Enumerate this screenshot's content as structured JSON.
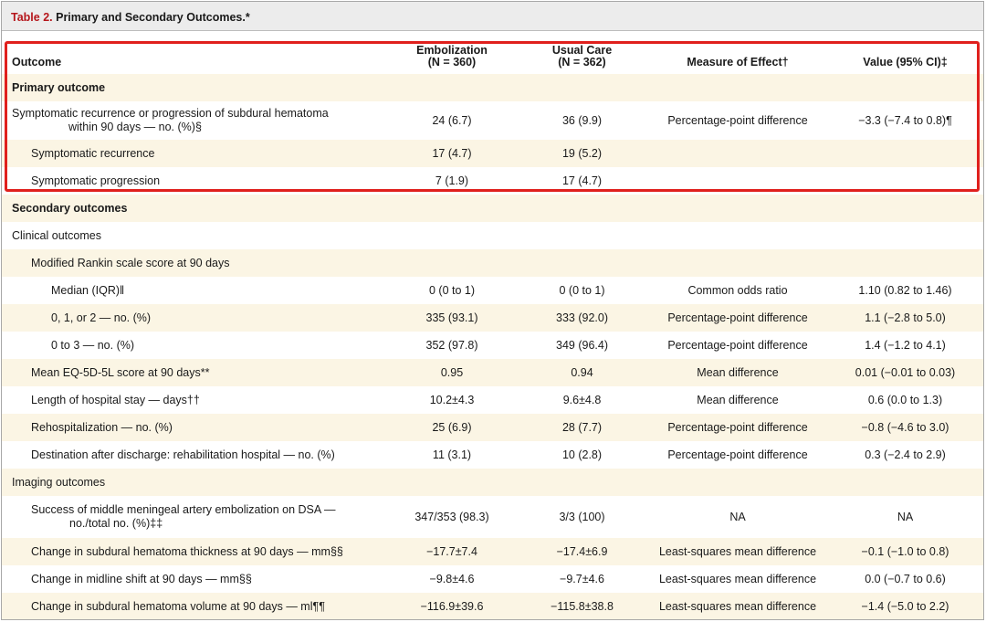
{
  "caption": {
    "table_number": "Table 2.",
    "title": "Primary and Secondary Outcomes.*"
  },
  "header": {
    "outcome": "Outcome",
    "embolization_name": "Embolization",
    "embolization_n": "(N = 360)",
    "usual_care_name": "Usual Care",
    "usual_care_n": "(N = 362)",
    "measure": "Measure of Effect†",
    "value": "Value (95% CI)‡"
  },
  "sections": {
    "primary": "Primary outcome",
    "secondary": "Secondary outcomes",
    "clinical": "Clinical outcomes",
    "imaging": "Imaging outcomes"
  },
  "rows": [
    {
      "label": "Symptomatic recurrence or progression of subdural hematoma",
      "label_cont": "within 90 days — no. (%)§",
      "emb": "24 (6.7)",
      "uc": "36 (9.9)",
      "measure": "Percentage-point difference",
      "value": "−3.3 (−7.4 to 0.8)¶"
    },
    {
      "label": "Symptomatic recurrence",
      "emb": "17 (4.7)",
      "uc": "19 (5.2)",
      "measure": "",
      "value": ""
    },
    {
      "label": "Symptomatic progression",
      "emb": "7 (1.9)",
      "uc": "17 (4.7)",
      "measure": "",
      "value": ""
    },
    {
      "label": "Modified Rankin scale score at 90 days",
      "emb": "",
      "uc": "",
      "measure": "",
      "value": ""
    },
    {
      "label": "Median (IQR)‖",
      "emb": "0 (0 to 1)",
      "uc": "0 (0 to 1)",
      "measure": "Common odds ratio",
      "value": "1.10 (0.82 to 1.46)"
    },
    {
      "label": "0, 1, or 2 — no. (%)",
      "emb": "335 (93.1)",
      "uc": "333 (92.0)",
      "measure": "Percentage-point difference",
      "value": "1.1 (−2.8 to 5.0)"
    },
    {
      "label": "0 to 3 — no. (%)",
      "emb": "352 (97.8)",
      "uc": "349 (96.4)",
      "measure": "Percentage-point difference",
      "value": "1.4 (−1.2 to 4.1)"
    },
    {
      "label": "Mean EQ-5D-5L score at 90 days**",
      "emb": "0.95",
      "uc": "0.94",
      "measure": "Mean difference",
      "value": "0.01 (−0.01 to 0.03)"
    },
    {
      "label": "Length of hospital stay — days††",
      "emb": "10.2±4.3",
      "uc": "9.6±4.8",
      "measure": "Mean difference",
      "value": "0.6 (0.0 to 1.3)"
    },
    {
      "label": "Rehospitalization — no. (%)",
      "emb": "25 (6.9)",
      "uc": "28 (7.7)",
      "measure": "Percentage-point difference",
      "value": "−0.8 (−4.6 to 3.0)"
    },
    {
      "label": "Destination after discharge: rehabilitation hospital — no. (%)",
      "emb": "11 (3.1)",
      "uc": "10 (2.8)",
      "measure": "Percentage-point difference",
      "value": "0.3 (−2.4 to 2.9)"
    },
    {
      "label": "Success of middle meningeal artery embolization on DSA —",
      "label_cont": "no./total no. (%)‡‡",
      "emb": "347/353 (98.3)",
      "uc": "3/3 (100)",
      "measure": "NA",
      "value": "NA"
    },
    {
      "label": "Change in subdural hematoma thickness at 90 days — mm§§",
      "emb": "−17.7±7.4",
      "uc": "−17.4±6.9",
      "measure": "Least-squares mean difference",
      "value": "−0.1 (−1.0 to 0.8)"
    },
    {
      "label": "Change in midline shift at 90 days — mm§§",
      "emb": "−9.8±4.6",
      "uc": "−9.7±4.6",
      "measure": "Least-squares mean difference",
      "value": "0.0 (−0.7 to 0.6)"
    },
    {
      "label": "Change in subdural hematoma volume at 90 days — ml¶¶",
      "emb": "−116.9±39.6",
      "uc": "−115.8±38.8",
      "measure": "Least-squares mean difference",
      "value": "−1.4 (−5.0 to 2.2)"
    }
  ],
  "highlight_color": "#e0201d",
  "shade_color": "#fbf5e4"
}
